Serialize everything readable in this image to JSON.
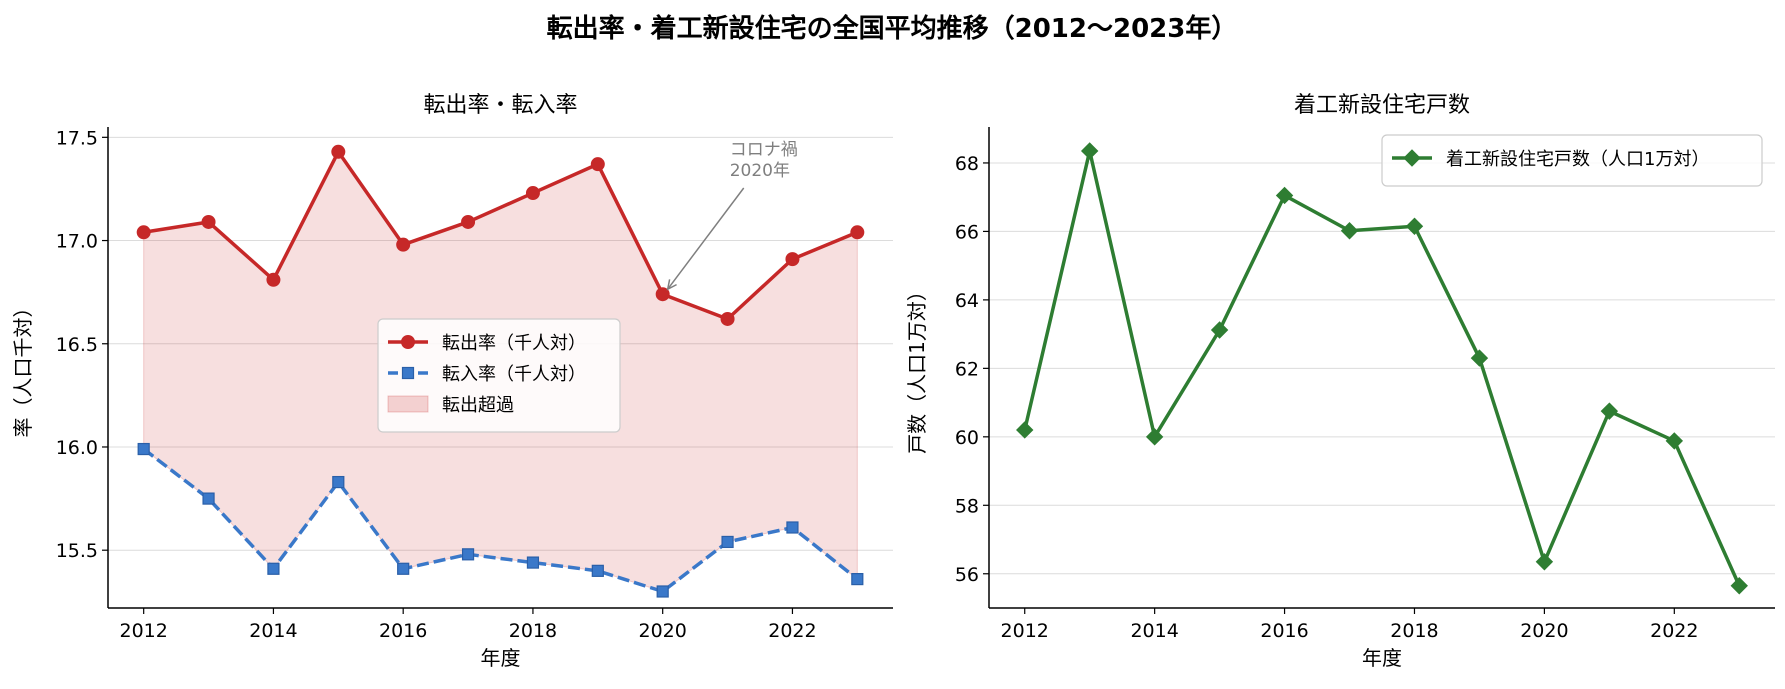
{
  "figure": {
    "title": "転出率・着工新設住宅の全国平均推移（2012〜2023年）"
  },
  "chart_data": [
    {
      "type": "line",
      "title": "転出率・転入率",
      "xlabel": "年度",
      "ylabel": "率（人口千対）",
      "x": [
        2012,
        2013,
        2014,
        2015,
        2016,
        2017,
        2018,
        2019,
        2020,
        2021,
        2022,
        2023
      ],
      "xticks": [
        2012,
        2014,
        2016,
        2018,
        2020,
        2022
      ],
      "ylim": [
        15.22,
        17.55
      ],
      "yticks": [
        15.5,
        16.0,
        16.5,
        17.0,
        17.5
      ],
      "ytick_labels": [
        "15.5",
        "16.0",
        "16.5",
        "17.0",
        "17.5"
      ],
      "grid": "horizontal",
      "legend_position": "center",
      "series": [
        {
          "name": "転出率（千人対）",
          "color": "#c62828",
          "marker": "circle",
          "linestyle": "solid",
          "values": [
            17.04,
            17.09,
            16.81,
            17.43,
            16.98,
            17.09,
            17.23,
            17.37,
            16.74,
            16.62,
            16.91,
            17.04
          ]
        },
        {
          "name": "転入率（千人対）",
          "color": "#3a78c9",
          "marker": "square",
          "linestyle": "dashed",
          "values": [
            15.99,
            15.75,
            15.41,
            15.83,
            15.41,
            15.48,
            15.44,
            15.4,
            15.3,
            15.54,
            15.61,
            15.36
          ]
        }
      ],
      "fill": {
        "name": "転出超過",
        "color": "#c62828",
        "opacity": 0.15
      },
      "annotation": {
        "text_line1": "コロナ禍",
        "text_line2": "2020年",
        "x": 2020,
        "y": 16.74
      }
    },
    {
      "type": "line",
      "title": "着工新設住宅戸数",
      "xlabel": "年度",
      "ylabel": "戸数（人口1万対）",
      "x": [
        2012,
        2013,
        2014,
        2015,
        2016,
        2017,
        2018,
        2019,
        2020,
        2021,
        2022,
        2023
      ],
      "xticks": [
        2012,
        2014,
        2016,
        2018,
        2020,
        2022
      ],
      "ylim": [
        55.0,
        69.05
      ],
      "yticks": [
        56,
        58,
        60,
        62,
        64,
        66,
        68
      ],
      "ytick_labels": [
        "56",
        "58",
        "60",
        "62",
        "64",
        "66",
        "68"
      ],
      "grid": "horizontal",
      "legend_position": "top-right",
      "series": [
        {
          "name": "着工新設住宅戸数（人口1万対）",
          "color": "#2e7d32",
          "marker": "diamond",
          "linestyle": "solid",
          "values": [
            60.2,
            68.35,
            60.0,
            63.12,
            67.05,
            66.02,
            66.15,
            62.3,
            56.35,
            60.75,
            59.88,
            55.65
          ]
        }
      ]
    }
  ]
}
